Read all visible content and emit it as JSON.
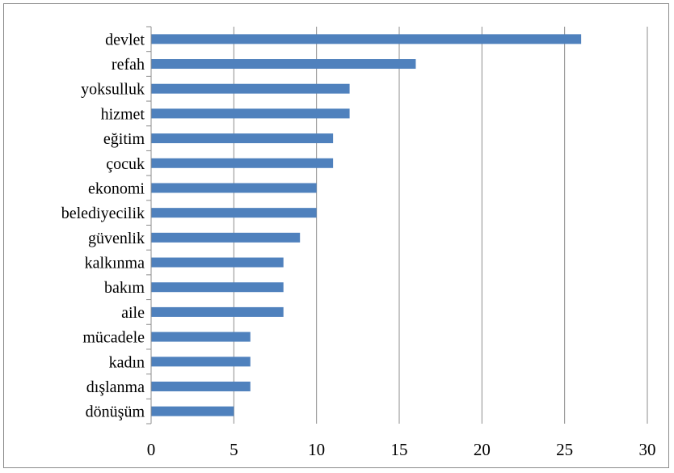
{
  "chart_data": {
    "type": "bar",
    "orientation": "horizontal",
    "categories": [
      "devlet",
      "refah",
      "yoksulluk",
      "hizmet",
      "eğitim",
      "çocuk",
      "ekonomi",
      "belediyecilik",
      "güvenlik",
      "kalkınma",
      "bakım",
      "aile",
      "mücadele",
      "kadın",
      "dışlanma",
      "dönüşüm"
    ],
    "values": [
      26,
      16,
      12,
      12,
      11,
      11,
      10,
      10,
      9,
      8,
      8,
      8,
      6,
      6,
      6,
      5
    ],
    "xlim": [
      0,
      30
    ],
    "xticks": [
      0,
      5,
      10,
      15,
      20,
      25,
      30
    ],
    "grid": "vertical",
    "legend": "none",
    "bar_color": "#4f81bd",
    "grid_color": "#8c8c8c"
  }
}
